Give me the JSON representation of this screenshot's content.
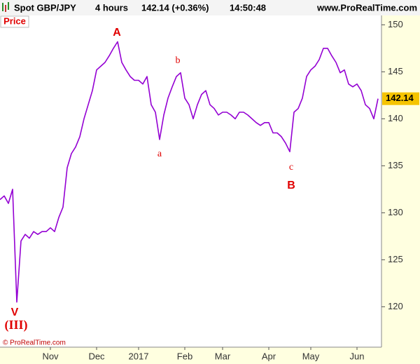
{
  "chart_data": {
    "type": "line",
    "title": "Spot GBP/JPY",
    "timeframe": "4 hours",
    "quote": "142.14 (+0.36%)",
    "time": "14:50:48",
    "source": "www.ProRealTime.com",
    "y_label": "Price",
    "copyright": "© ProRealTime.com",
    "last_value": 142.14,
    "categories": [
      null,
      null,
      null,
      null,
      null,
      null,
      null,
      null,
      null,
      null,
      null,
      null,
      "Nov",
      null,
      null,
      null,
      null,
      null,
      null,
      null,
      null,
      null,
      null,
      "Dec",
      null,
      null,
      null,
      null,
      null,
      null,
      null,
      null,
      null,
      "2017",
      null,
      null,
      null,
      null,
      null,
      null,
      null,
      null,
      null,
      null,
      "Feb",
      null,
      null,
      null,
      null,
      null,
      null,
      null,
      null,
      "Mar",
      null,
      null,
      null,
      null,
      null,
      null,
      null,
      null,
      null,
      null,
      "Apr",
      null,
      null,
      null,
      null,
      null,
      null,
      null,
      null,
      null,
      "May",
      null,
      null,
      null,
      null,
      null,
      null,
      null,
      null,
      null,
      null,
      "Jun",
      null,
      null,
      null,
      null,
      null
    ],
    "series": [
      {
        "name": "Spot GBP/JPY",
        "color": "#9400d3",
        "values": [
          131.4,
          131.8,
          131,
          132.5,
          120.5,
          127,
          127.7,
          127.3,
          128,
          127.7,
          128,
          128,
          128.4,
          128,
          129.5,
          130.6,
          134.8,
          136.3,
          137,
          138.1,
          140,
          141.5,
          143,
          145.2,
          145.6,
          146,
          146.7,
          147.5,
          148.2,
          146,
          145.2,
          144.5,
          144.1,
          144.1,
          143.7,
          144.5,
          141.5,
          140.7,
          137.8,
          140.4,
          142.2,
          143.4,
          144.5,
          144.9,
          142.2,
          141.5,
          140,
          141.5,
          142.6,
          143,
          141.5,
          141.1,
          140.4,
          140.7,
          140.7,
          140.4,
          140,
          140.7,
          140.7,
          140.4,
          140,
          139.6,
          139.3,
          139.6,
          139.6,
          138.5,
          138.5,
          138.1,
          137.4,
          136.5,
          140.7,
          141.1,
          142.2,
          144.5,
          145.2,
          145.6,
          146.3,
          147.5,
          147.5,
          146.7,
          146,
          144.9,
          145.2,
          143.7,
          143.4,
          143.7,
          143,
          141.5,
          141.1,
          140,
          142.14
        ]
      }
    ],
    "ylim": [
      115.7,
      151.0
    ],
    "yticks": [
      120,
      125,
      130,
      135,
      140,
      145,
      150
    ],
    "annotations": [
      "A",
      "b",
      "a",
      "c",
      "B",
      "V",
      "(III)"
    ]
  }
}
